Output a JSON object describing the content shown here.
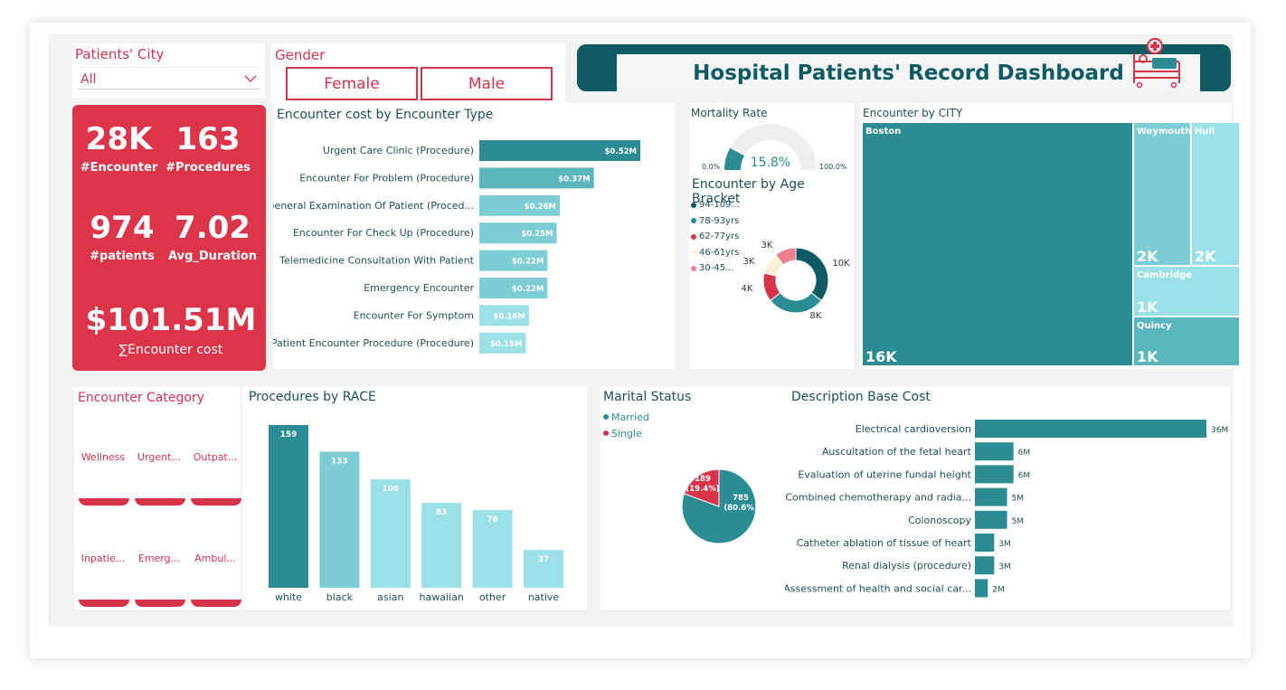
{
  "header": {
    "title": "Hospital Patients' Record Dashboard"
  },
  "filters": {
    "city_label": "Patients' City",
    "city_value": "All",
    "gender_label": "Gender",
    "gender_options": [
      "Female",
      "Male"
    ]
  },
  "kpis": {
    "encounter_value": "28K",
    "encounter_label": "#Encounter",
    "procedures_value": "163",
    "procedures_label": "#Procedures",
    "patients_value": "974",
    "patients_label": "#patients",
    "duration_value": "7.02",
    "duration_label": "Avg_Duration",
    "cost_value": "$101.51M",
    "cost_label": "∑Encounter cost"
  },
  "encounter_category": {
    "title": "Encounter Category",
    "items": [
      "Wellness",
      "Urgent...",
      "Outpat...",
      "Inpatie...",
      "Emerg...",
      "Ambul..."
    ]
  },
  "colors": {
    "teal_dark": "#2b8c94",
    "teal": "#5ab6bd",
    "teal_light": "#9be0e6",
    "red": "#d7344a",
    "navy": "#0e5b63"
  },
  "chart_data": [
    {
      "id": "encounter_cost",
      "type": "bar",
      "orientation": "horizontal",
      "title": "Encounter cost by Encounter Type",
      "categories": [
        "Urgent Care Clinic (Procedure)",
        "Encounter For Problem (Procedure)",
        "General Examination Of Patient (Proced...",
        "Encounter For Check Up (Procedure)",
        "Telemedicine Consultation With Patient",
        "Emergency Encounter",
        "Encounter For Symptom",
        "Patient Encounter Procedure (Procedure)"
      ],
      "values": [
        0.52,
        0.37,
        0.26,
        0.25,
        0.22,
        0.22,
        0.16,
        0.15
      ],
      "labels": [
        "$0.52M",
        "$0.37M",
        "$0.26M",
        "$0.25M",
        "$0.22M",
        "$0.22M",
        "$0.16M",
        "$0.15M"
      ]
    },
    {
      "id": "mortality",
      "type": "gauge",
      "title": "Mortality Rate",
      "value": 15.8,
      "value_label": "15.8%",
      "min_label": "0.0%",
      "max_label": "100.0%"
    },
    {
      "id": "age_bracket",
      "type": "pie",
      "variant": "donut",
      "title": "Encounter by Age Bracket",
      "legend": [
        "94-109...",
        "78-93yrs",
        "62-77yrs",
        "46-61yrs",
        "30-45..."
      ],
      "values": [
        10,
        8,
        4,
        3,
        3
      ],
      "labels": [
        "10K",
        "8K",
        "4K",
        "3K",
        "3K"
      ],
      "colors": [
        "#0e5b63",
        "#2b8c94",
        "#d7344a",
        "#f7f1d6",
        "#e8808e"
      ]
    },
    {
      "id": "city_treemap",
      "type": "treemap",
      "title": "Encounter by CITY",
      "categories": [
        "Boston",
        "Weymouth",
        "Hull",
        "Cambridge",
        "Quincy"
      ],
      "labels": [
        "16K",
        "2K",
        "2K",
        "1K",
        "1K"
      ]
    },
    {
      "id": "race",
      "type": "bar",
      "title": "Procedures by RACE",
      "categories": [
        "white",
        "black",
        "asian",
        "hawaiian",
        "other",
        "native"
      ],
      "values": [
        159,
        133,
        106,
        83,
        76,
        37
      ],
      "ylim": [
        0,
        159
      ]
    },
    {
      "id": "marital",
      "type": "pie",
      "title": "Marital Status",
      "legend": [
        "Married",
        "Single"
      ],
      "values": [
        785,
        189
      ],
      "labels": [
        "785 (80.6%)",
        "189 (19.4%)"
      ],
      "colors": [
        "#2b8c94",
        "#d7344a"
      ]
    },
    {
      "id": "base_cost",
      "type": "bar",
      "orientation": "horizontal",
      "title": "Description Base Cost",
      "categories": [
        "Electrical cardioversion",
        "Auscultation of the fetal heart",
        "Evaluation of uterine fundal height",
        "Combined chemotherapy and radia...",
        "Colonoscopy",
        "Catheter ablation of tissue of heart",
        "Renal dialysis (procedure)",
        "Assessment of health and social car..."
      ],
      "values": [
        36,
        6,
        6,
        5,
        5,
        3,
        3,
        2
      ],
      "labels": [
        "36M",
        "6M",
        "6M",
        "5M",
        "5M",
        "3M",
        "3M",
        "2M"
      ]
    }
  ]
}
